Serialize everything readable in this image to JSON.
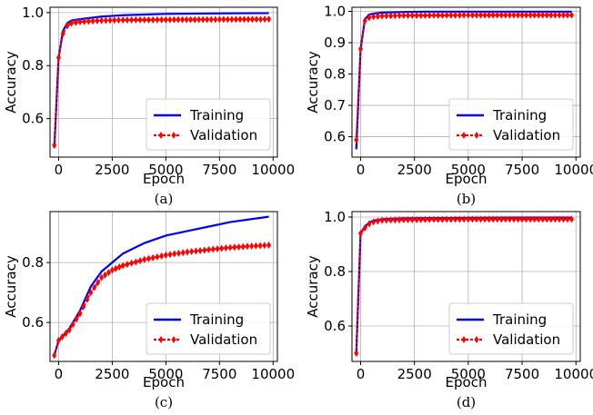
{
  "colors": {
    "training": "#0000ee",
    "validation": "#ff0000",
    "grid": "#b0b0b0"
  },
  "legend": {
    "training": "Training",
    "validation": "Validation",
    "placement": "lower-right"
  },
  "chart_data": [
    {
      "type": "line",
      "caption": "(a)",
      "xlabel": "Epoch",
      "ylabel": "Accuracy",
      "xlim": [
        -400,
        10200
      ],
      "ylim": [
        0.455,
        1.02
      ],
      "xticks": [
        0,
        2500,
        5000,
        7500,
        10000
      ],
      "yticks": [
        0.6,
        0.8,
        1.0
      ],
      "grid": true,
      "series": [
        {
          "name": "Training",
          "x": [
            -200,
            0,
            200,
            400,
            600,
            1000,
            2000,
            3000,
            5000,
            7500,
            9800
          ],
          "y": [
            0.49,
            0.83,
            0.93,
            0.96,
            0.97,
            0.975,
            0.985,
            0.99,
            0.995,
            0.997,
            0.998
          ]
        },
        {
          "name": "Validation",
          "x": [
            -200,
            0,
            200,
            400,
            600,
            1000,
            2000,
            3000,
            5000,
            7500,
            9800
          ],
          "y": [
            0.5,
            0.83,
            0.92,
            0.95,
            0.96,
            0.965,
            0.97,
            0.972,
            0.973,
            0.974,
            0.975
          ]
        }
      ]
    },
    {
      "type": "line",
      "caption": "(b)",
      "xlabel": "Epoch",
      "ylabel": "Accuracy",
      "xlim": [
        -400,
        10200
      ],
      "ylim": [
        0.535,
        1.013
      ],
      "xticks": [
        0,
        2500,
        5000,
        7500,
        10000
      ],
      "yticks": [
        0.6,
        0.7,
        0.8,
        0.9,
        1.0
      ],
      "grid": true,
      "series": [
        {
          "name": "Training",
          "x": [
            -200,
            0,
            200,
            400,
            600,
            1000,
            2000,
            3000,
            5000,
            7500,
            9800
          ],
          "y": [
            0.56,
            0.88,
            0.975,
            0.99,
            0.993,
            0.996,
            0.998,
            0.999,
            0.999,
            0.999,
            0.999
          ]
        },
        {
          "name": "Validation",
          "x": [
            -200,
            0,
            200,
            400,
            600,
            1000,
            2000,
            3000,
            5000,
            7500,
            9800
          ],
          "y": [
            0.59,
            0.88,
            0.97,
            0.98,
            0.983,
            0.985,
            0.987,
            0.987,
            0.988,
            0.988,
            0.988
          ]
        }
      ]
    },
    {
      "type": "line",
      "caption": "(c)",
      "xlabel": "Epoch",
      "ylabel": "Accuracy",
      "xlim": [
        -400,
        10200
      ],
      "ylim": [
        0.47,
        0.97
      ],
      "xticks": [
        0,
        2500,
        5000,
        7500,
        10000
      ],
      "yticks": [
        0.6,
        0.8
      ],
      "grid": true,
      "series": [
        {
          "name": "Training",
          "x": [
            -200,
            0,
            500,
            1000,
            1500,
            2000,
            2500,
            3000,
            4000,
            5000,
            6000,
            7000,
            8000,
            9000,
            9800
          ],
          "y": [
            0.49,
            0.54,
            0.58,
            0.64,
            0.72,
            0.77,
            0.8,
            0.83,
            0.865,
            0.89,
            0.905,
            0.92,
            0.935,
            0.945,
            0.953
          ]
        },
        {
          "name": "Validation",
          "x": [
            -200,
            0,
            500,
            1000,
            1500,
            2000,
            2500,
            3000,
            4000,
            5000,
            6000,
            7000,
            8000,
            9000,
            9800
          ],
          "y": [
            0.49,
            0.54,
            0.575,
            0.63,
            0.7,
            0.75,
            0.775,
            0.79,
            0.81,
            0.825,
            0.835,
            0.843,
            0.85,
            0.855,
            0.858
          ]
        }
      ]
    },
    {
      "type": "line",
      "caption": "(d)",
      "xlabel": "Epoch",
      "ylabel": "Accuracy",
      "xlim": [
        -400,
        10200
      ],
      "ylim": [
        0.47,
        1.02
      ],
      "xticks": [
        0,
        2500,
        5000,
        7500,
        10000
      ],
      "yticks": [
        0.6,
        0.8,
        1.0
      ],
      "grid": true,
      "series": [
        {
          "name": "Training",
          "x": [
            -200,
            0,
            200,
            400,
            600,
            1000,
            2000,
            3000,
            5000,
            7500,
            9800
          ],
          "y": [
            0.5,
            0.94,
            0.965,
            0.98,
            0.987,
            0.992,
            0.995,
            0.996,
            0.997,
            0.998,
            0.998
          ]
        },
        {
          "name": "Validation",
          "x": [
            -200,
            0,
            200,
            400,
            600,
            1000,
            2000,
            3000,
            5000,
            7500,
            9800
          ],
          "y": [
            0.5,
            0.94,
            0.96,
            0.975,
            0.982,
            0.988,
            0.99,
            0.991,
            0.992,
            0.992,
            0.992
          ]
        }
      ]
    }
  ]
}
